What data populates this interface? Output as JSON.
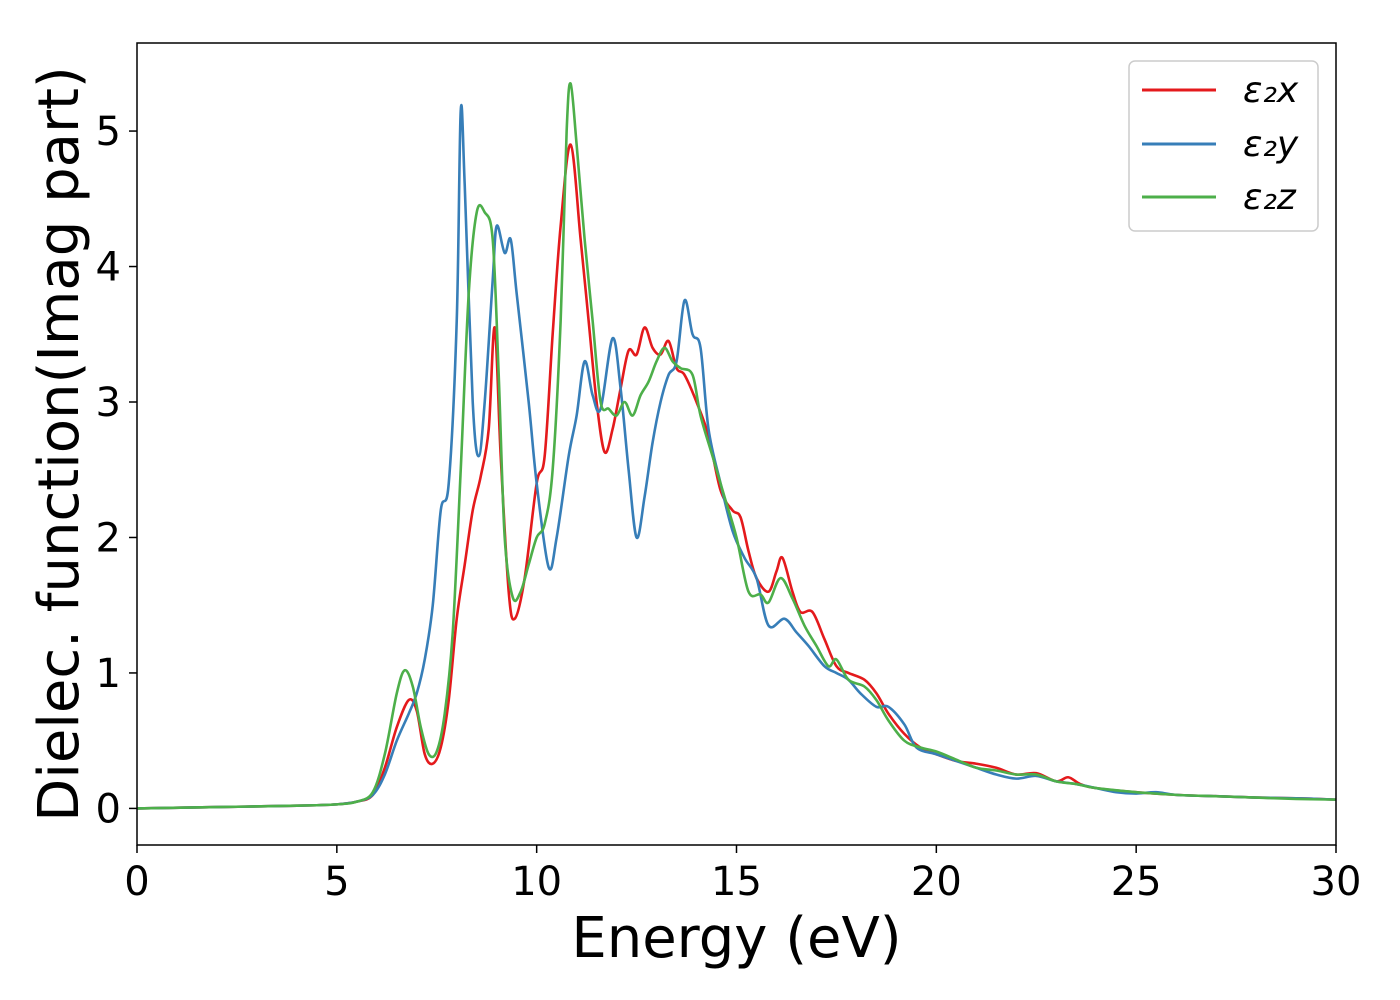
{
  "chart_data": {
    "type": "line",
    "xlabel": "Energy (eV)",
    "ylabel": "Dielec. function(Imag part)",
    "xlim": [
      0,
      30
    ],
    "ylim": [
      -0.27,
      5.65
    ],
    "x_ticks": [
      0,
      5,
      10,
      15,
      20,
      25,
      30
    ],
    "y_ticks": [
      0,
      1,
      2,
      3,
      4,
      5
    ],
    "grid": false,
    "legend_position": "top-right",
    "colors": {
      "x": "#e41a1c",
      "y": "#377eb8",
      "z": "#4daf4a"
    },
    "series": [
      {
        "name": "ε2x",
        "color": "#e41a1c",
        "points": [
          [
            0,
            0.0
          ],
          [
            2,
            0.01
          ],
          [
            4,
            0.02
          ],
          [
            5,
            0.03
          ],
          [
            5.5,
            0.05
          ],
          [
            5.9,
            0.1
          ],
          [
            6.2,
            0.3
          ],
          [
            6.5,
            0.6
          ],
          [
            6.8,
            0.8
          ],
          [
            7.0,
            0.72
          ],
          [
            7.2,
            0.4
          ],
          [
            7.4,
            0.33
          ],
          [
            7.6,
            0.45
          ],
          [
            7.8,
            0.8
          ],
          [
            8.0,
            1.4
          ],
          [
            8.2,
            1.8
          ],
          [
            8.4,
            2.2
          ],
          [
            8.6,
            2.45
          ],
          [
            8.8,
            2.8
          ],
          [
            8.95,
            3.55
          ],
          [
            9.1,
            2.6
          ],
          [
            9.3,
            1.6
          ],
          [
            9.45,
            1.4
          ],
          [
            9.7,
            1.7
          ],
          [
            10.0,
            2.4
          ],
          [
            10.2,
            2.6
          ],
          [
            10.4,
            3.5
          ],
          [
            10.6,
            4.3
          ],
          [
            10.85,
            4.9
          ],
          [
            11.1,
            4.2
          ],
          [
            11.3,
            3.6
          ],
          [
            11.5,
            3.0
          ],
          [
            11.7,
            2.63
          ],
          [
            11.9,
            2.8
          ],
          [
            12.1,
            3.1
          ],
          [
            12.3,
            3.38
          ],
          [
            12.5,
            3.35
          ],
          [
            12.7,
            3.55
          ],
          [
            12.9,
            3.4
          ],
          [
            13.1,
            3.35
          ],
          [
            13.3,
            3.45
          ],
          [
            13.5,
            3.25
          ],
          [
            13.7,
            3.2
          ],
          [
            14.0,
            3.0
          ],
          [
            14.3,
            2.75
          ],
          [
            14.6,
            2.35
          ],
          [
            14.9,
            2.2
          ],
          [
            15.1,
            2.15
          ],
          [
            15.3,
            1.9
          ],
          [
            15.5,
            1.7
          ],
          [
            15.8,
            1.6
          ],
          [
            16.0,
            1.75
          ],
          [
            16.15,
            1.85
          ],
          [
            16.4,
            1.6
          ],
          [
            16.6,
            1.45
          ],
          [
            16.9,
            1.45
          ],
          [
            17.2,
            1.25
          ],
          [
            17.5,
            1.05
          ],
          [
            17.8,
            1.0
          ],
          [
            18.2,
            0.95
          ],
          [
            18.5,
            0.85
          ],
          [
            18.8,
            0.7
          ],
          [
            19.2,
            0.55
          ],
          [
            19.6,
            0.45
          ],
          [
            20.0,
            0.4
          ],
          [
            20.5,
            0.35
          ],
          [
            21.0,
            0.33
          ],
          [
            21.5,
            0.3
          ],
          [
            22.0,
            0.25
          ],
          [
            22.5,
            0.26
          ],
          [
            23.0,
            0.2
          ],
          [
            23.3,
            0.23
          ],
          [
            23.6,
            0.18
          ],
          [
            24.0,
            0.15
          ],
          [
            25.0,
            0.12
          ],
          [
            26.0,
            0.1
          ],
          [
            27.0,
            0.09
          ],
          [
            28.0,
            0.08
          ],
          [
            29.0,
            0.075
          ],
          [
            30.0,
            0.065
          ]
        ]
      },
      {
        "name": "ε2y",
        "color": "#377eb8",
        "points": [
          [
            0,
            0.0
          ],
          [
            2,
            0.01
          ],
          [
            4,
            0.02
          ],
          [
            5,
            0.03
          ],
          [
            5.5,
            0.05
          ],
          [
            5.9,
            0.1
          ],
          [
            6.2,
            0.25
          ],
          [
            6.5,
            0.5
          ],
          [
            6.8,
            0.7
          ],
          [
            7.0,
            0.85
          ],
          [
            7.2,
            1.1
          ],
          [
            7.4,
            1.5
          ],
          [
            7.6,
            2.2
          ],
          [
            7.8,
            2.4
          ],
          [
            8.0,
            3.6
          ],
          [
            8.1,
            5.15
          ],
          [
            8.2,
            4.6
          ],
          [
            8.4,
            3.0
          ],
          [
            8.55,
            2.6
          ],
          [
            8.7,
            3.0
          ],
          [
            8.9,
            3.9
          ],
          [
            9.0,
            4.3
          ],
          [
            9.2,
            4.1
          ],
          [
            9.35,
            4.2
          ],
          [
            9.5,
            3.8
          ],
          [
            9.8,
            3.0
          ],
          [
            10.0,
            2.4
          ],
          [
            10.3,
            1.78
          ],
          [
            10.5,
            2.0
          ],
          [
            10.8,
            2.6
          ],
          [
            11.0,
            2.9
          ],
          [
            11.2,
            3.3
          ],
          [
            11.4,
            3.05
          ],
          [
            11.6,
            2.95
          ],
          [
            11.9,
            3.47
          ],
          [
            12.1,
            3.1
          ],
          [
            12.3,
            2.5
          ],
          [
            12.5,
            2.0
          ],
          [
            12.7,
            2.3
          ],
          [
            12.9,
            2.7
          ],
          [
            13.1,
            3.0
          ],
          [
            13.3,
            3.2
          ],
          [
            13.5,
            3.3
          ],
          [
            13.7,
            3.75
          ],
          [
            13.9,
            3.5
          ],
          [
            14.1,
            3.4
          ],
          [
            14.3,
            2.8
          ],
          [
            14.6,
            2.4
          ],
          [
            14.9,
            2.05
          ],
          [
            15.2,
            1.85
          ],
          [
            15.5,
            1.7
          ],
          [
            15.8,
            1.35
          ],
          [
            16.2,
            1.4
          ],
          [
            16.5,
            1.3
          ],
          [
            16.8,
            1.2
          ],
          [
            17.2,
            1.05
          ],
          [
            17.5,
            1.0
          ],
          [
            17.8,
            0.95
          ],
          [
            18.1,
            0.85
          ],
          [
            18.5,
            0.75
          ],
          [
            18.8,
            0.75
          ],
          [
            19.2,
            0.62
          ],
          [
            19.5,
            0.45
          ],
          [
            20.0,
            0.4
          ],
          [
            20.5,
            0.35
          ],
          [
            21.0,
            0.3
          ],
          [
            21.5,
            0.25
          ],
          [
            22.0,
            0.22
          ],
          [
            22.5,
            0.24
          ],
          [
            23.0,
            0.2
          ],
          [
            23.5,
            0.18
          ],
          [
            24.0,
            0.15
          ],
          [
            24.5,
            0.12
          ],
          [
            25.0,
            0.11
          ],
          [
            25.5,
            0.12
          ],
          [
            26.0,
            0.1
          ],
          [
            27.0,
            0.09
          ],
          [
            28.0,
            0.08
          ],
          [
            29.0,
            0.075
          ],
          [
            30.0,
            0.065
          ]
        ]
      },
      {
        "name": "ε2z",
        "color": "#4daf4a",
        "points": [
          [
            0,
            0.0
          ],
          [
            2,
            0.01
          ],
          [
            4,
            0.02
          ],
          [
            5,
            0.03
          ],
          [
            5.5,
            0.05
          ],
          [
            5.9,
            0.12
          ],
          [
            6.2,
            0.4
          ],
          [
            6.5,
            0.85
          ],
          [
            6.7,
            1.02
          ],
          [
            6.9,
            0.9
          ],
          [
            7.1,
            0.6
          ],
          [
            7.3,
            0.4
          ],
          [
            7.5,
            0.42
          ],
          [
            7.7,
            0.7
          ],
          [
            7.9,
            1.3
          ],
          [
            8.1,
            2.5
          ],
          [
            8.3,
            3.8
          ],
          [
            8.5,
            4.4
          ],
          [
            8.7,
            4.4
          ],
          [
            8.9,
            4.2
          ],
          [
            9.05,
            3.2
          ],
          [
            9.2,
            2.0
          ],
          [
            9.4,
            1.56
          ],
          [
            9.6,
            1.6
          ],
          [
            9.8,
            1.8
          ],
          [
            10.0,
            2.0
          ],
          [
            10.2,
            2.1
          ],
          [
            10.4,
            2.5
          ],
          [
            10.6,
            3.6
          ],
          [
            10.75,
            5.0
          ],
          [
            10.85,
            5.35
          ],
          [
            11.0,
            4.9
          ],
          [
            11.2,
            4.2
          ],
          [
            11.4,
            3.6
          ],
          [
            11.6,
            3.0
          ],
          [
            11.8,
            2.95
          ],
          [
            12.0,
            2.9
          ],
          [
            12.2,
            3.0
          ],
          [
            12.4,
            2.9
          ],
          [
            12.6,
            3.05
          ],
          [
            12.8,
            3.15
          ],
          [
            13.0,
            3.3
          ],
          [
            13.2,
            3.4
          ],
          [
            13.4,
            3.3
          ],
          [
            13.6,
            3.25
          ],
          [
            13.9,
            3.2
          ],
          [
            14.1,
            2.9
          ],
          [
            14.4,
            2.6
          ],
          [
            14.7,
            2.3
          ],
          [
            15.0,
            2.0
          ],
          [
            15.3,
            1.6
          ],
          [
            15.6,
            1.58
          ],
          [
            15.8,
            1.52
          ],
          [
            16.1,
            1.7
          ],
          [
            16.4,
            1.55
          ],
          [
            16.7,
            1.35
          ],
          [
            17.0,
            1.2
          ],
          [
            17.3,
            1.05
          ],
          [
            17.5,
            1.1
          ],
          [
            17.8,
            0.95
          ],
          [
            18.2,
            0.9
          ],
          [
            18.5,
            0.8
          ],
          [
            18.8,
            0.65
          ],
          [
            19.2,
            0.5
          ],
          [
            19.6,
            0.45
          ],
          [
            20.0,
            0.42
          ],
          [
            20.5,
            0.36
          ],
          [
            21.0,
            0.3
          ],
          [
            21.5,
            0.28
          ],
          [
            22.0,
            0.25
          ],
          [
            22.5,
            0.25
          ],
          [
            23.0,
            0.2
          ],
          [
            23.5,
            0.18
          ],
          [
            24.0,
            0.15
          ],
          [
            25.0,
            0.12
          ],
          [
            26.0,
            0.1
          ],
          [
            27.0,
            0.09
          ],
          [
            28.0,
            0.08
          ],
          [
            29.0,
            0.07
          ],
          [
            30.0,
            0.065
          ]
        ]
      }
    ]
  },
  "legend": {
    "items": [
      {
        "label": "ε₂x",
        "color": "#e41a1c"
      },
      {
        "label": "ε₂y",
        "color": "#377eb8"
      },
      {
        "label": "ε₂z",
        "color": "#4daf4a"
      }
    ]
  }
}
